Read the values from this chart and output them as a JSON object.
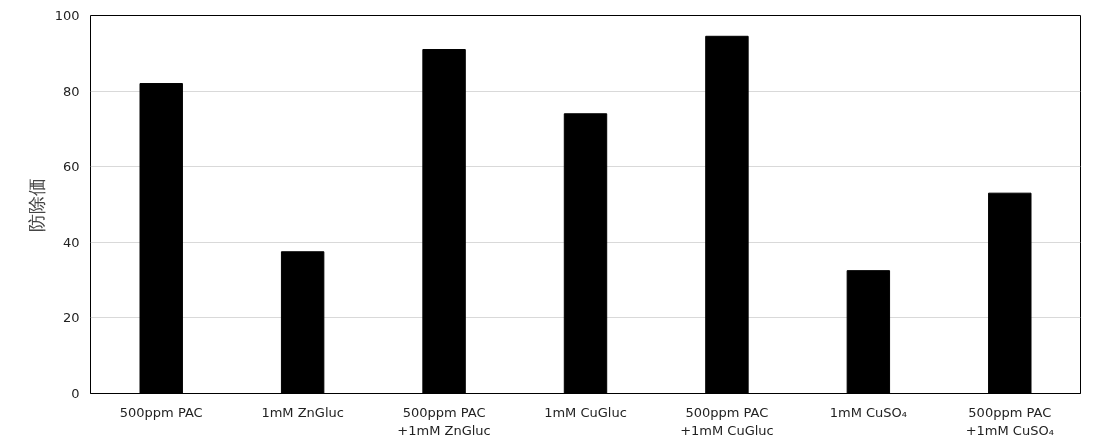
{
  "chart_data": {
    "type": "bar",
    "ylabel": "防除価",
    "categories": [
      "500ppm PAC",
      "1mM ZnGluc",
      "500ppm PAC\n+1mM ZnGluc",
      "1mM CuGluc",
      "500ppm PAC\n+1mM CuGluc",
      "1mM CuSO₄",
      "500ppm PAC\n+1mM CuSO₄"
    ],
    "values": [
      82,
      37.5,
      91,
      74,
      94.5,
      32.5,
      53
    ],
    "color": "#000000",
    "ylim": [
      0,
      100
    ],
    "yticks": [
      0,
      20,
      40,
      60,
      80,
      100
    ],
    "grid": "y"
  }
}
